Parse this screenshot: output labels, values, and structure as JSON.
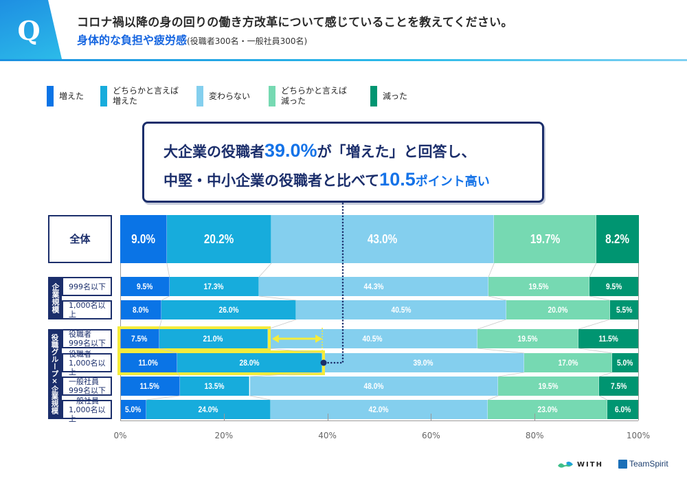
{
  "header": {
    "q_badge": "Q",
    "question": "コロナ禍以降の身の回りの働き方改革について感じていることを教えてください。",
    "topic": "身体的な負担や疲労感",
    "sample_note": "(役職者300名・一般社員300名)"
  },
  "callout": {
    "line1_pre": "大企業の役職者",
    "line1_hl": "39.0%",
    "line1_post": "が「増えた」と回答し、",
    "line2_pre": "中堅・中小企業の役職者と比べて",
    "line2_hl": "10.5",
    "line2_post": "ポイント高い"
  },
  "colors": {
    "increased": "#0a74e6",
    "somewhat_increased": "#17acdc",
    "unchanged": "#84cfee",
    "somewhat_decreased": "#76d9b2",
    "decreased": "#009571",
    "navy": "#1b2e6b",
    "highlight": "#f5ec3a"
  },
  "groups": {
    "company_size": "企業規模",
    "role_x_size": "役職グループ×企業規模"
  },
  "logos": {
    "with": "WITH",
    "teamspirit": "TeamSpirit"
  },
  "chart_data": {
    "type": "bar",
    "orientation": "horizontal-stacked-100",
    "title": "コロナ禍以降の身の回りの働き方改革について感じていること：身体的な負担や疲労感",
    "xlabel": "",
    "ylabel": "",
    "xlim": [
      0,
      100
    ],
    "x_ticks": [
      "0%",
      "20%",
      "40%",
      "60%",
      "80%",
      "100%"
    ],
    "legend_position": "top-left",
    "categories": [
      "全体",
      "999名以下",
      "1,000名以上",
      "役職者\n999名以下",
      "役職者\n1,000名以上",
      "一般社員\n999名以下",
      "一般社員\n1,000名以上"
    ],
    "series": [
      {
        "name": "増えた",
        "color_key": "increased",
        "values": [
          9.0,
          9.5,
          8.0,
          7.5,
          11.0,
          11.5,
          5.0
        ]
      },
      {
        "name": "どちらかと言えば\n増えた",
        "color_key": "somewhat_increased",
        "values": [
          20.2,
          17.3,
          26.0,
          21.0,
          28.0,
          13.5,
          24.0
        ]
      },
      {
        "name": "変わらない",
        "color_key": "unchanged",
        "values": [
          43.0,
          44.3,
          40.5,
          40.5,
          39.0,
          48.0,
          42.0
        ]
      },
      {
        "name": "どちらかと言えば\n減った",
        "color_key": "somewhat_decreased",
        "values": [
          19.7,
          19.5,
          20.0,
          19.5,
          17.0,
          19.5,
          23.0
        ]
      },
      {
        "name": "減った",
        "color_key": "decreased",
        "values": [
          8.2,
          9.5,
          5.5,
          11.5,
          5.0,
          7.5,
          6.0
        ]
      }
    ],
    "annotation": "大企業の役職者39.0%が「増えた」と回答し、中堅・中小企業の役職者と比べて10.5ポイント高い"
  }
}
